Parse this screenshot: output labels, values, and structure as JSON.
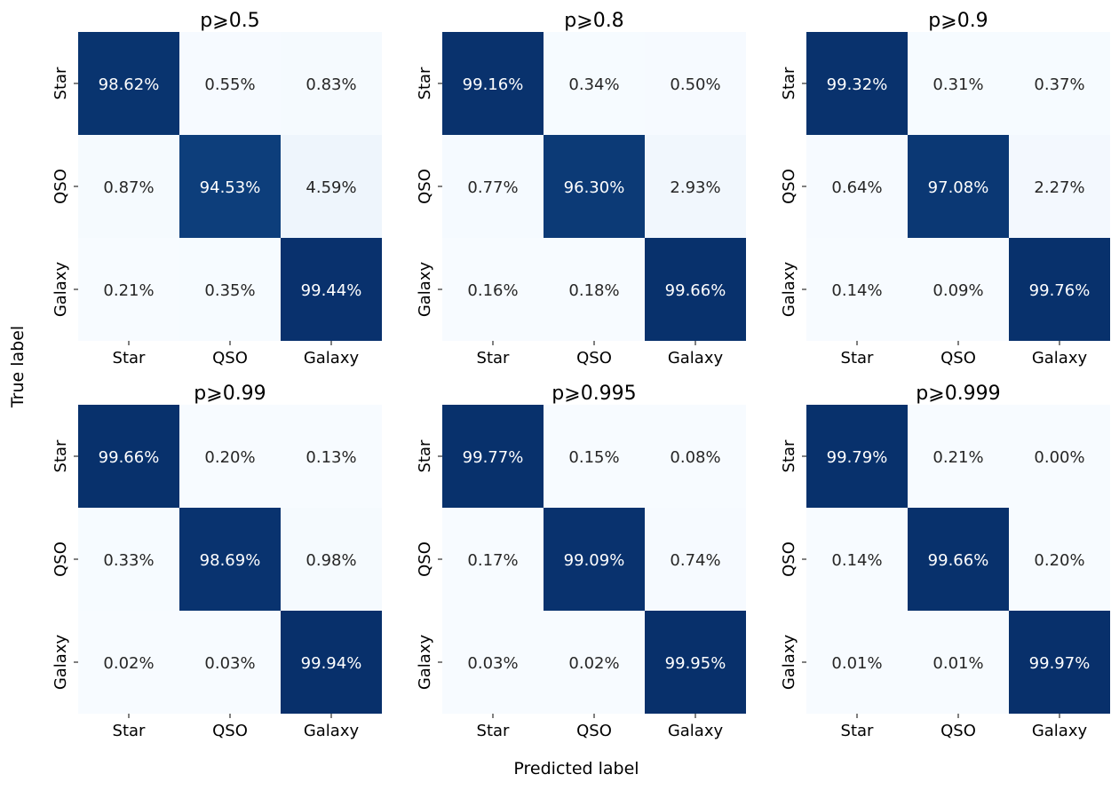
{
  "figure": {
    "xlabel": "Predicted label",
    "ylabel": "True label"
  },
  "colormap": {
    "low": "#f7fbff",
    "mid": "#c6dbef",
    "mid2": "#6baed6",
    "mid3": "#2171b5",
    "high": "#08306b",
    "text_light": "#ffffff",
    "text_dark": "#262626"
  },
  "chart_data": [
    {
      "type": "heatmap",
      "title": "p⩾0.5",
      "x_categories": [
        "Star",
        "QSO",
        "Galaxy"
      ],
      "y_categories": [
        "Star",
        "QSO",
        "Galaxy"
      ],
      "values": [
        [
          98.62,
          0.55,
          0.83
        ],
        [
          0.87,
          94.53,
          4.59
        ],
        [
          0.21,
          0.35,
          99.44
        ]
      ],
      "labels": [
        [
          "98.62%",
          "0.55%",
          "0.83%"
        ],
        [
          "0.87%",
          "94.53%",
          "4.59%"
        ],
        [
          "0.21%",
          "0.35%",
          "99.44%"
        ]
      ]
    },
    {
      "type": "heatmap",
      "title": "p⩾0.8",
      "x_categories": [
        "Star",
        "QSO",
        "Galaxy"
      ],
      "y_categories": [
        "Star",
        "QSO",
        "Galaxy"
      ],
      "values": [
        [
          99.16,
          0.34,
          0.5
        ],
        [
          0.77,
          96.3,
          2.93
        ],
        [
          0.16,
          0.18,
          99.66
        ]
      ],
      "labels": [
        [
          "99.16%",
          "0.34%",
          "0.50%"
        ],
        [
          "0.77%",
          "96.30%",
          "2.93%"
        ],
        [
          "0.16%",
          "0.18%",
          "99.66%"
        ]
      ]
    },
    {
      "type": "heatmap",
      "title": "p⩾0.9",
      "x_categories": [
        "Star",
        "QSO",
        "Galaxy"
      ],
      "y_categories": [
        "Star",
        "QSO",
        "Galaxy"
      ],
      "values": [
        [
          99.32,
          0.31,
          0.37
        ],
        [
          0.64,
          97.08,
          2.27
        ],
        [
          0.14,
          0.09,
          99.76
        ]
      ],
      "labels": [
        [
          "99.32%",
          "0.31%",
          "0.37%"
        ],
        [
          "0.64%",
          "97.08%",
          "2.27%"
        ],
        [
          "0.14%",
          "0.09%",
          "99.76%"
        ]
      ]
    },
    {
      "type": "heatmap",
      "title": "p⩾0.99",
      "x_categories": [
        "Star",
        "QSO",
        "Galaxy"
      ],
      "y_categories": [
        "Star",
        "QSO",
        "Galaxy"
      ],
      "values": [
        [
          99.66,
          0.2,
          0.13
        ],
        [
          0.33,
          98.69,
          0.98
        ],
        [
          0.02,
          0.03,
          99.94
        ]
      ],
      "labels": [
        [
          "99.66%",
          "0.20%",
          "0.13%"
        ],
        [
          "0.33%",
          "98.69%",
          "0.98%"
        ],
        [
          "0.02%",
          "0.03%",
          "99.94%"
        ]
      ]
    },
    {
      "type": "heatmap",
      "title": "p⩾0.995",
      "x_categories": [
        "Star",
        "QSO",
        "Galaxy"
      ],
      "y_categories": [
        "Star",
        "QSO",
        "Galaxy"
      ],
      "values": [
        [
          99.77,
          0.15,
          0.08
        ],
        [
          0.17,
          99.09,
          0.74
        ],
        [
          0.03,
          0.02,
          99.95
        ]
      ],
      "labels": [
        [
          "99.77%",
          "0.15%",
          "0.08%"
        ],
        [
          "0.17%",
          "99.09%",
          "0.74%"
        ],
        [
          "0.03%",
          "0.02%",
          "99.95%"
        ]
      ]
    },
    {
      "type": "heatmap",
      "title": "p⩾0.999",
      "x_categories": [
        "Star",
        "QSO",
        "Galaxy"
      ],
      "y_categories": [
        "Star",
        "QSO",
        "Galaxy"
      ],
      "values": [
        [
          99.79,
          0.21,
          0.0
        ],
        [
          0.14,
          99.66,
          0.2
        ],
        [
          0.01,
          0.01,
          99.97
        ]
      ],
      "labels": [
        [
          "99.79%",
          "0.21%",
          "0.00%"
        ],
        [
          "0.14%",
          "99.66%",
          "0.20%"
        ],
        [
          "0.01%",
          "0.01%",
          "99.97%"
        ]
      ]
    }
  ]
}
